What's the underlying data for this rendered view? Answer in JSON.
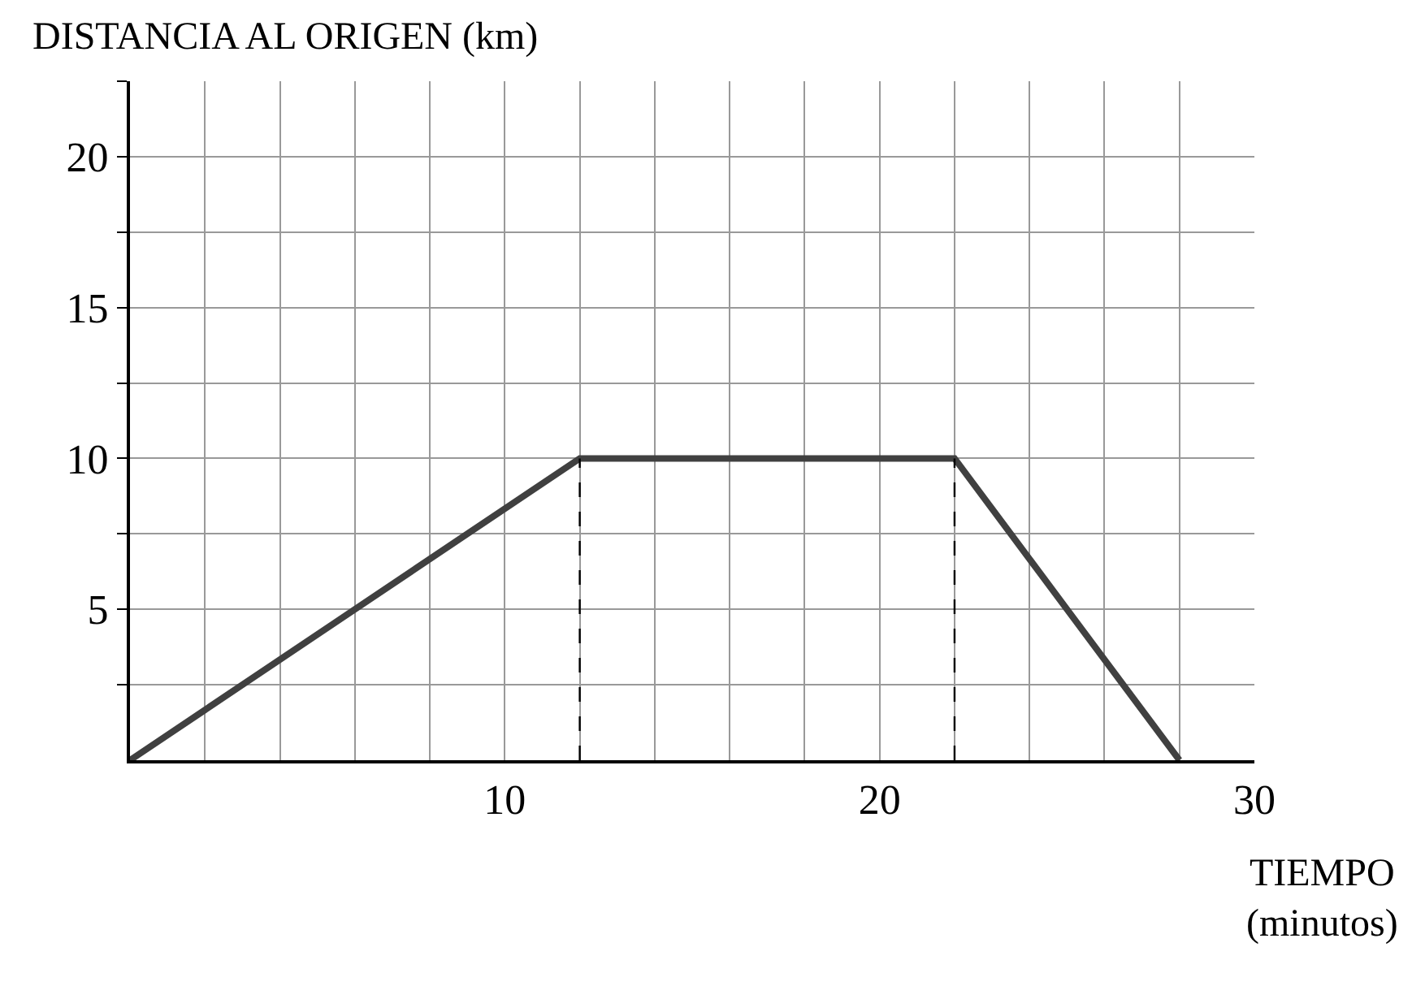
{
  "chart_data": {
    "type": "line",
    "ylabel": "DISTANCIA AL ORIGEN (km)",
    "xlabel": "TIEMPO\n(minutos)",
    "xlim": [
      0,
      30
    ],
    "ylim": [
      0,
      22.5
    ],
    "xticks": [
      {
        "value": 2,
        "label": null
      },
      {
        "value": 4,
        "label": null
      },
      {
        "value": 6,
        "label": null
      },
      {
        "value": 8,
        "label": null
      },
      10,
      {
        "value": 12,
        "label": null
      },
      {
        "value": 14,
        "label": null
      },
      {
        "value": 16,
        "label": null
      },
      {
        "value": 18,
        "label": null
      },
      20,
      {
        "value": 22,
        "label": null
      },
      {
        "value": 24,
        "label": null
      },
      {
        "value": 26,
        "label": null
      },
      {
        "value": 28,
        "label": null
      },
      30
    ],
    "yticks": [
      {
        "value": 2.5,
        "label": null
      },
      5,
      {
        "value": 7.5,
        "label": null
      },
      10,
      {
        "value": 12.5,
        "label": null
      },
      15,
      {
        "value": 17.5,
        "label": null
      },
      20,
      {
        "value": 22.5,
        "label": null
      }
    ],
    "grid": true,
    "series": [
      {
        "x": [
          0,
          12,
          22,
          28
        ],
        "values": [
          0,
          10,
          10,
          0
        ],
        "color": "#404040",
        "line_style": "solid"
      },
      {
        "x": [
          12,
          12
        ],
        "values": [
          0,
          10
        ],
        "color": "#000000",
        "line_style": "dashed"
      },
      {
        "x": [
          22,
          22
        ],
        "values": [
          0,
          10
        ],
        "color": "#000000",
        "line_style": "dashed"
      }
    ]
  }
}
